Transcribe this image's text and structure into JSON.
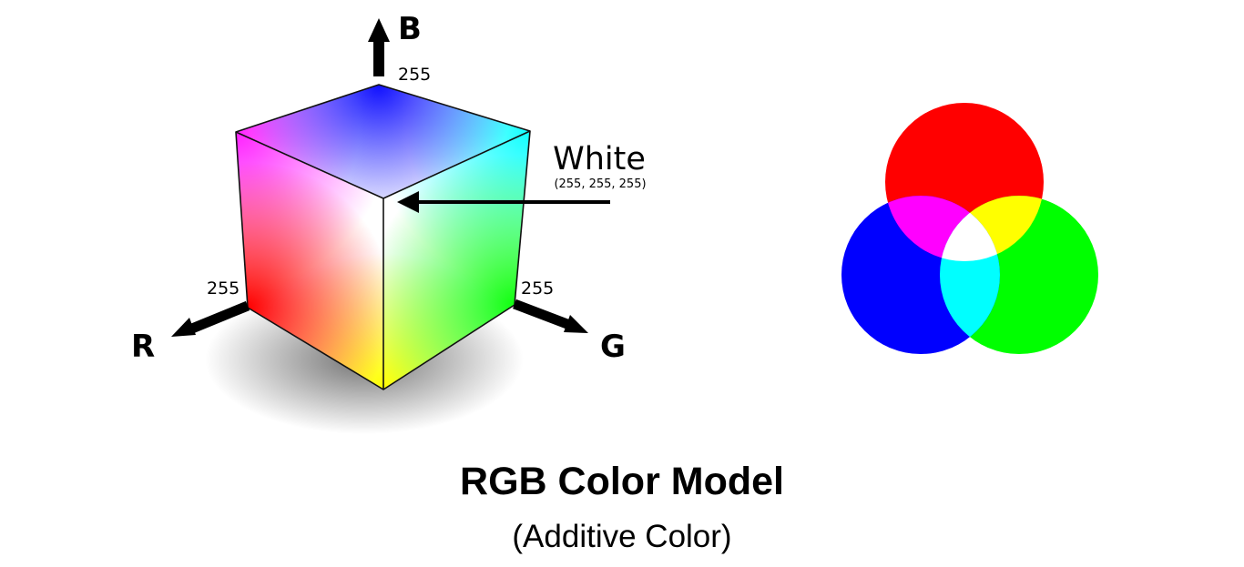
{
  "cube": {
    "axes": {
      "b": {
        "letter": "B",
        "max": "255"
      },
      "r": {
        "letter": "R",
        "max": "255"
      },
      "g": {
        "letter": "G",
        "max": "255"
      }
    },
    "white": {
      "label": "White",
      "value": "(255, 255, 255)"
    },
    "colors": {
      "white": "#ffffff",
      "blue": "#0000ff",
      "cyan": "#00ffff",
      "magenta": "#ff00ff",
      "red": "#ff0000",
      "yellow": "#ffff00",
      "green": "#00ff00"
    }
  },
  "venn": {
    "circles": [
      {
        "name": "red",
        "color": "#ff0000"
      },
      {
        "name": "green",
        "color": "#00ff00"
      },
      {
        "name": "blue",
        "color": "#0000ff"
      }
    ]
  },
  "caption": {
    "title": "RGB Color Model",
    "subtitle": "(Additive Color)"
  }
}
